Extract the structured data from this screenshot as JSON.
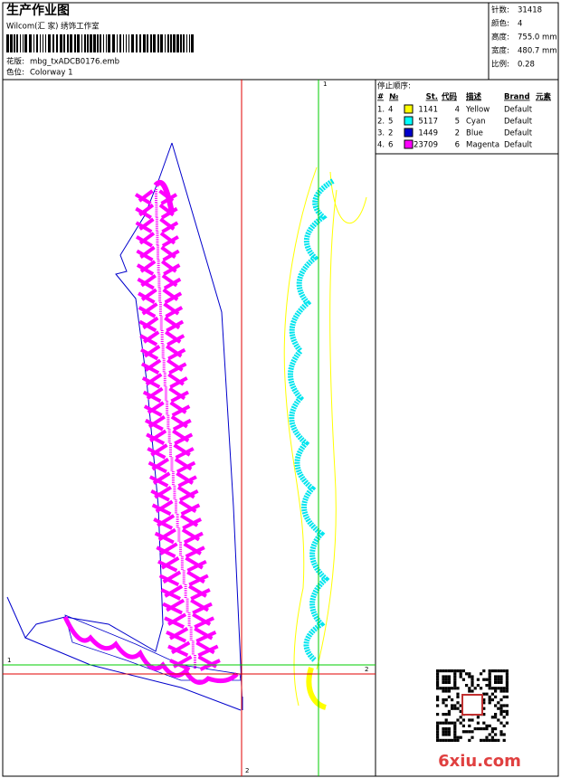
{
  "header": {
    "title": "生产作业图",
    "studio": "Wilcom(汇 家) 绣饰工作室",
    "design_label": "花版:",
    "design_file": "mbg_txADCB0176.emb",
    "colorway_label": "色位:",
    "colorway": "Colorway 1"
  },
  "stats": [
    {
      "label": "针数:",
      "value": "31418"
    },
    {
      "label": "颜色:",
      "value": "4"
    },
    {
      "label": "高度:",
      "value": "755.0 mm"
    },
    {
      "label": "宽度:",
      "value": "480.7 mm"
    },
    {
      "label": "比例:",
      "value": "0.28"
    }
  ],
  "stop_sequence": {
    "title": "停止顺序:",
    "columns": [
      "#",
      "№",
      "St.",
      "代码",
      "描述",
      "Brand",
      "元素"
    ],
    "rows": [
      {
        "seq": "1.",
        "needle": "4",
        "color": "#ffff00",
        "stitches": "1141",
        "code": "4",
        "description": "Yellow",
        "brand": "Default"
      },
      {
        "seq": "2.",
        "needle": "5",
        "color": "#00ffff",
        "stitches": "5117",
        "code": "5",
        "description": "Cyan",
        "brand": "Default"
      },
      {
        "seq": "3.",
        "needle": "2",
        "color": "#0000cc",
        "stitches": "1449",
        "code": "2",
        "description": "Blue",
        "brand": "Default"
      },
      {
        "seq": "4.",
        "needle": "6",
        "color": "#ff00ff",
        "stitches": "23709",
        "code": "6",
        "description": "Magenta",
        "brand": "Default"
      }
    ]
  },
  "crosshair": {
    "green_top": "1",
    "green_left": "1",
    "red_right": "2",
    "red_bottom": "2",
    "green_right": "2"
  },
  "watermark": "6xiu.com"
}
